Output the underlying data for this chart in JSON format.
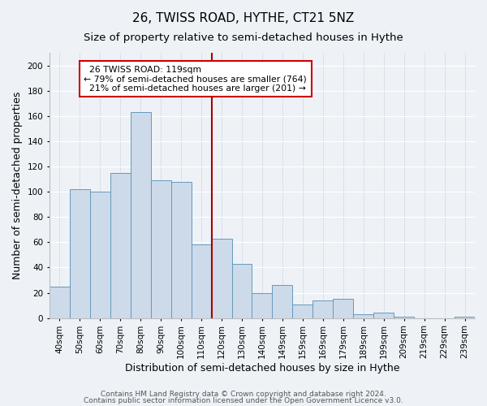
{
  "title": "26, TWISS ROAD, HYTHE, CT21 5NZ",
  "subtitle": "Size of property relative to semi-detached houses in Hythe",
  "xlabel": "Distribution of semi-detached houses by size in Hythe",
  "ylabel": "Number of semi-detached properties",
  "footer_line1": "Contains HM Land Registry data © Crown copyright and database right 2024.",
  "footer_line2": "Contains public sector information licensed under the Open Government Licence v3.0.",
  "categories": [
    "40sqm",
    "50sqm",
    "60sqm",
    "70sqm",
    "80sqm",
    "90sqm",
    "100sqm",
    "110sqm",
    "120sqm",
    "130sqm",
    "140sqm",
    "149sqm",
    "159sqm",
    "169sqm",
    "179sqm",
    "189sqm",
    "199sqm",
    "209sqm",
    "219sqm",
    "229sqm",
    "239sqm"
  ],
  "values": [
    25,
    102,
    100,
    115,
    163,
    109,
    108,
    58,
    63,
    43,
    20,
    26,
    11,
    14,
    15,
    3,
    4,
    1,
    0,
    0,
    1
  ],
  "bar_color": "#cddaea",
  "bar_edge_color": "#6699bb",
  "highlight_line_color": "#aa0000",
  "highlight_line_index": 8,
  "property_label": "26 TWISS ROAD: 119sqm",
  "smaller_text": "← 79% of semi-detached houses are smaller (764)",
  "larger_text": "21% of semi-detached houses are larger (201) →",
  "annotation_box_edge_color": "#cc0000",
  "ylim": [
    0,
    210
  ],
  "yticks": [
    0,
    20,
    40,
    60,
    80,
    100,
    120,
    140,
    160,
    180,
    200
  ],
  "background_color": "#eef2f7",
  "grid_color": "#d0d8e4",
  "title_fontsize": 11,
  "subtitle_fontsize": 9.5,
  "axis_label_fontsize": 9,
  "tick_fontsize": 7.5,
  "footer_fontsize": 6.5,
  "ann_fontsize": 7.8
}
